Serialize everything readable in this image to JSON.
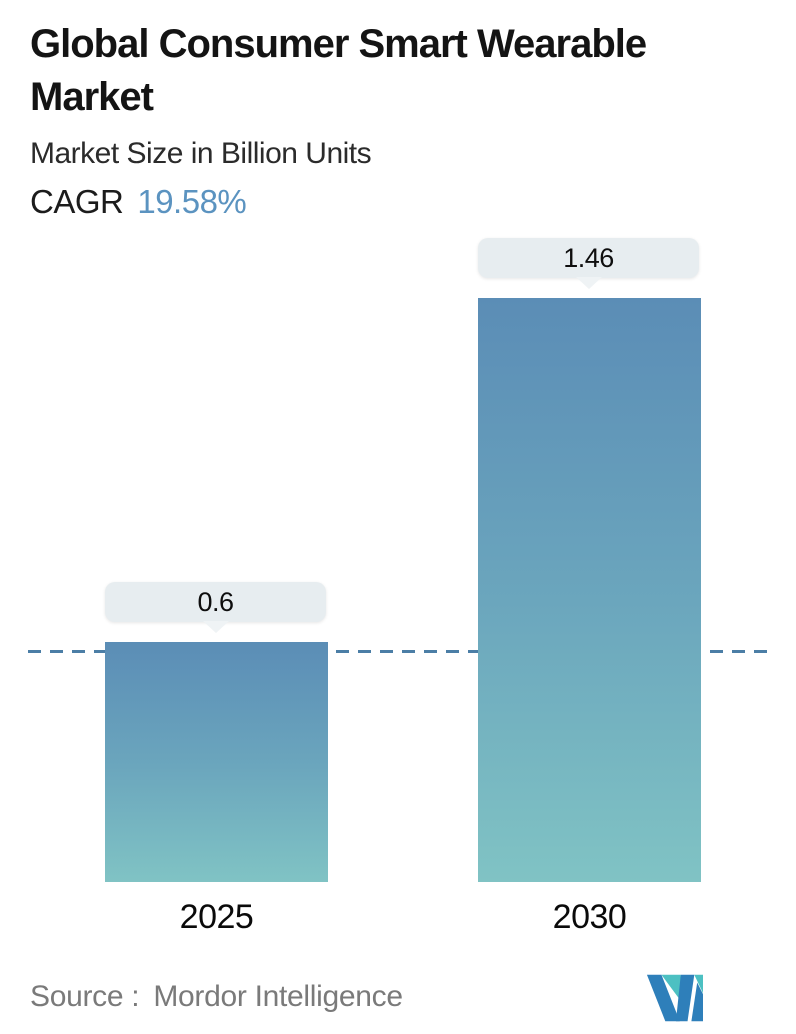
{
  "header": {
    "title": "Global Consumer Smart Wearable Market",
    "title_lines": [
      "Global Consumer Smart Wearable",
      "Market"
    ],
    "subtitle": "Market Size in Billion Units",
    "cagr_label": "CAGR",
    "cagr_value": "19.58%"
  },
  "chart_data": {
    "type": "bar",
    "title": "Global Consumer Smart Wearable Market",
    "ylabel": "Market Size in Billion Units",
    "categories": [
      "2025",
      "2030"
    ],
    "values": [
      0.6,
      1.46
    ],
    "value_labels": [
      "0.6",
      "1.46"
    ],
    "ylim": [
      0,
      1.5
    ],
    "grid": false,
    "legend": false,
    "reference_line": {
      "value": 0.6,
      "style": "dashed"
    },
    "bar_gradient": {
      "top": "#5b8db6",
      "mid": "#6ba6bd",
      "bottom": "#80c3c4"
    }
  },
  "footer": {
    "source_label": "Source :",
    "source_value": "Mordor Intelligence",
    "logo_name": "mordor-intelligence-logo"
  },
  "colors": {
    "accent_blue": "#5b93c0",
    "dashed_line": "#4b7ea6",
    "tooltip_bg": "#e7edf0",
    "tooltip_pointer": "#eff3f5",
    "text_dark": "#141414",
    "text_gray": "#7a7a7a",
    "logo_blue": "#2e7fba",
    "logo_teal": "#4cc0c2"
  }
}
